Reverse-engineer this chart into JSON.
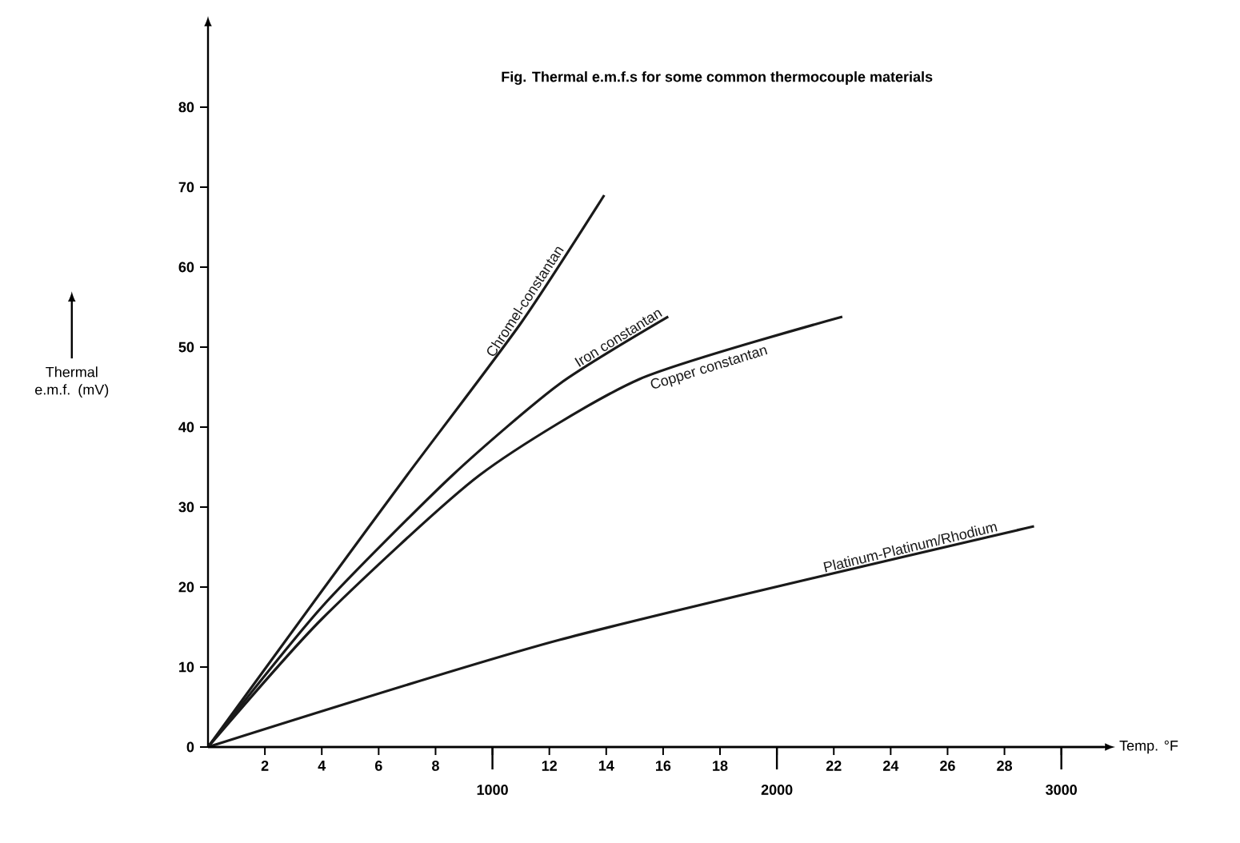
{
  "chart_data": {
    "type": "line",
    "title": "Fig. Thermal e.m.f.s for some common thermocouple materials",
    "xlabel": "Temp. °F",
    "ylabel": "Thermal e.m.f. (mV)",
    "xlim": [
      0,
      31.5
    ],
    "ylim": [
      0,
      90
    ],
    "xticks": [
      2,
      4,
      6,
      8,
      {
        "value": 10,
        "label": null
      },
      12,
      14,
      16,
      18,
      {
        "value": 20,
        "label": null
      },
      22,
      24,
      26,
      28,
      {
        "value": 30,
        "label": null
      }
    ],
    "x2lim": [
      0,
      3150
    ],
    "x2ticks": [
      1000,
      2000,
      3000
    ],
    "yticks": [
      0,
      10,
      20,
      30,
      40,
      50,
      60,
      70,
      80
    ],
    "grid": false,
    "legend": false,
    "series": [
      {
        "name": "Chromel-constantan",
        "color": "#1a1a1a",
        "x": [
          0,
          4,
          7,
          11,
          13.93
        ],
        "values": [
          0,
          19.5,
          34,
          53,
          69
        ]
      },
      {
        "name": "Iron constantan",
        "color": "#1a1a1a",
        "x": [
          0,
          4,
          8.6,
          12.36,
          16.18
        ],
        "values": [
          0,
          17.5,
          34,
          45.4,
          53.8
        ]
      },
      {
        "name": "Copper constantan",
        "color": "#1a1a1a",
        "x": [
          0,
          4,
          9.55,
          15.17,
          22.3
        ],
        "values": [
          0,
          16,
          34,
          46,
          53.8
        ]
      },
      {
        "name": "Platinum-Platinum/Rhodium",
        "color": "#1a1a1a",
        "x": [
          0,
          12.36,
          29.04
        ],
        "values": [
          0,
          13.4,
          27.6
        ]
      }
    ]
  }
}
